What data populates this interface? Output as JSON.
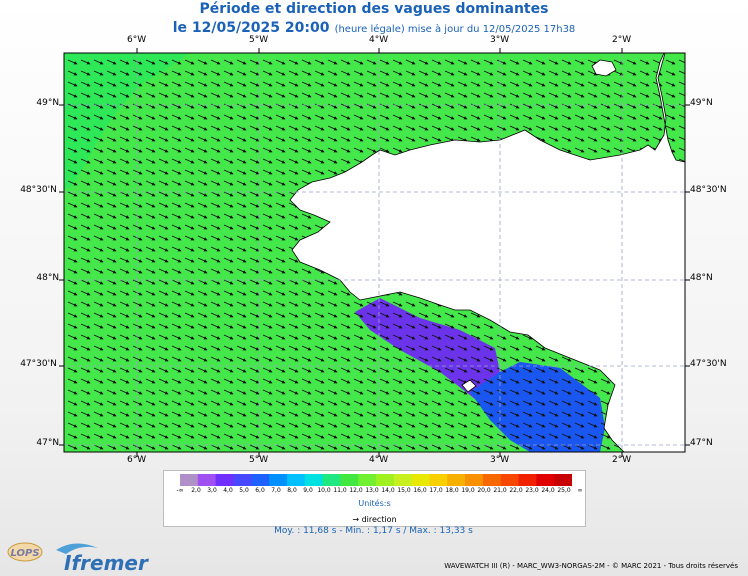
{
  "title": {
    "line1": "Période et direction des vagues dominantes",
    "date": "le 12/05/2025 20:00",
    "note": "(heure légale) mise à jour du 12/05/2025 17h38"
  },
  "axes": {
    "lon_labels": [
      "6°W",
      "5°W",
      "4°W",
      "3°W",
      "2°W"
    ],
    "lat_labels_left": [
      "49°N",
      "48°30'N",
      "48°N",
      "47°30'N",
      "47°N"
    ],
    "lat_labels_right": [
      "49°N",
      "48°30'N",
      "48°N",
      "47°30'N",
      "47°N"
    ]
  },
  "colors": {
    "sea_main": "#45e84a",
    "sea_blue": "#1a57f0",
    "sea_violet": "#6b34ea",
    "land": "#ffffff",
    "arrow": "#111111",
    "grid": "#9aa3c8",
    "title": "#1a62b8"
  },
  "legend": {
    "values": [
      "-∞",
      "2,0",
      "3,0",
      "4,0",
      "5,0",
      "6,0",
      "7,0",
      "8,0",
      "9,0",
      "10,0",
      "11,0",
      "12,0",
      "13,0",
      "14,0",
      "15,0",
      "16,0",
      "17,0",
      "18,0",
      "19,0",
      "20,0",
      "21,0",
      "22,0",
      "23,0",
      "24,0",
      "25,0",
      "∞"
    ],
    "colors": [
      "#b090c8",
      "#a050f0",
      "#7030ff",
      "#4848ff",
      "#2060ff",
      "#0090ff",
      "#00c0ff",
      "#00e0e0",
      "#20e880",
      "#40e840",
      "#70f030",
      "#a0f020",
      "#c8f020",
      "#e8e800",
      "#f8d000",
      "#f8b000",
      "#f89000",
      "#f86800",
      "#f84800",
      "#f02000",
      "#e00000",
      "#c80000"
    ],
    "units": "Unités:s",
    "direction": "→ direction"
  },
  "stats": "Moy. : 11,68 s  -  Min. : 1,17 s / Max. : 13,33 s",
  "footer": "WAVEWATCH III (R) - MARC_WW3-NORGAS-2M - © MARC 2021 - Tous droits réservés",
  "logos": {
    "lops": "LOPS",
    "ifremer": "Ifremer"
  }
}
